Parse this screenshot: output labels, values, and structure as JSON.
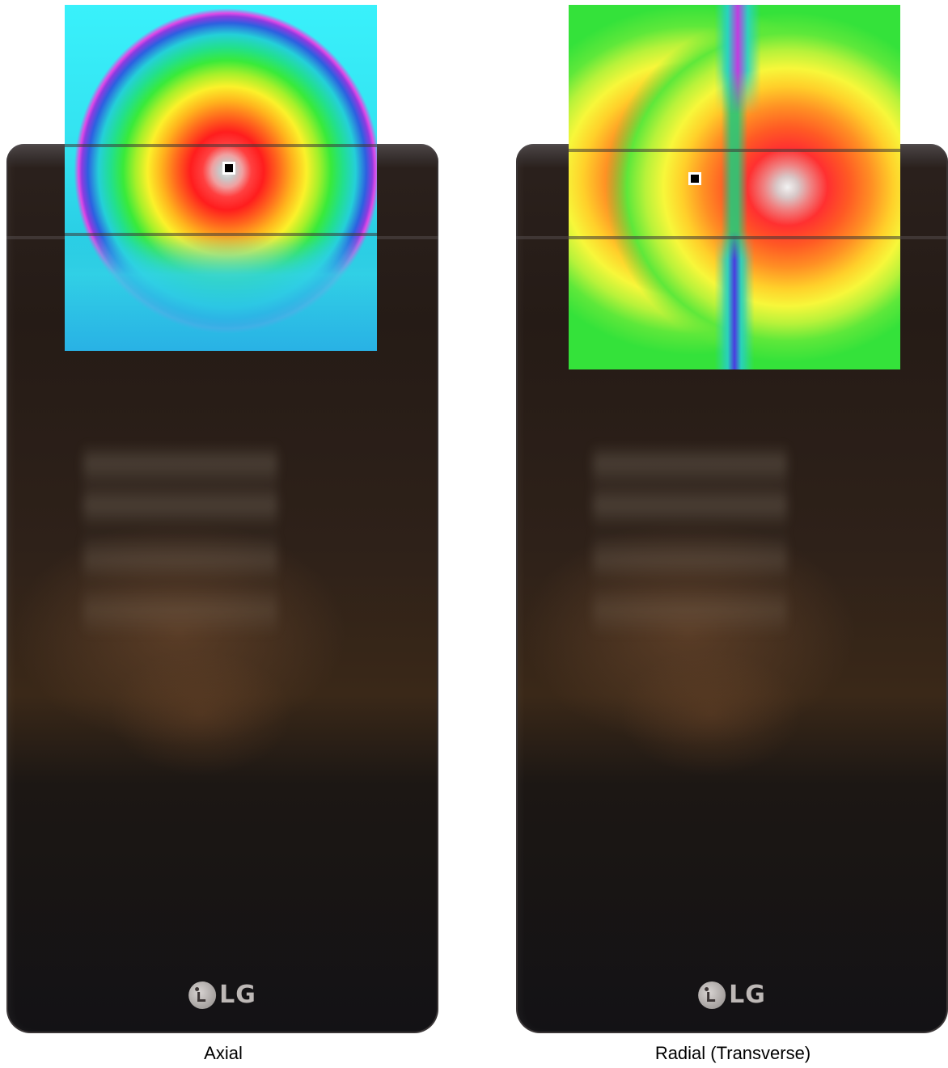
{
  "figure": {
    "panels": [
      {
        "id": "axial",
        "caption": "Axial",
        "phone_logo": "LG",
        "heatmap_colors": [
          "#e8e8e8",
          "#ff1d1d",
          "#ffb31d",
          "#fbf12a",
          "#39ea3a",
          "#24d0d8",
          "#2c60e0",
          "#e04ae6"
        ]
      },
      {
        "id": "radial",
        "caption": "Radial (Transverse)",
        "phone_logo": "LG",
        "heatmap_colors": [
          "#f2f2f2",
          "#ff3030",
          "#ff8f24",
          "#f7f73a",
          "#5ee83a",
          "#34e23a",
          "#c23be0"
        ]
      }
    ]
  }
}
